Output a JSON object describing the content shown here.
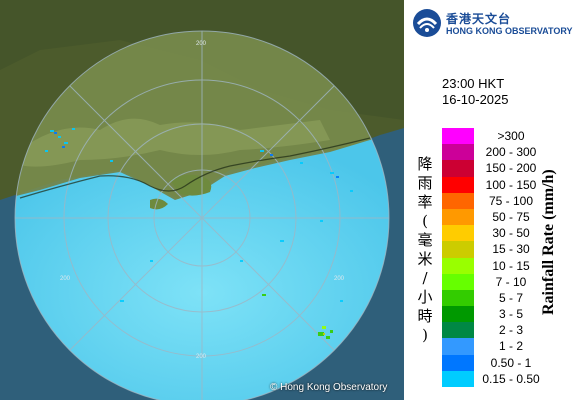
{
  "header": {
    "logo_cn": "香港天文台",
    "logo_en": "HONG KONG OBSERVATORY"
  },
  "time": {
    "clock": "23:00 HKT",
    "date": "16-10-2025"
  },
  "legend": {
    "title_cn": "降雨率(毫米/小時)",
    "title_en": "Rainfall Rate (mm/h)",
    "items": [
      {
        "label": ">300",
        "color": "#ff00ff"
      },
      {
        "label": "200 - 300",
        "color": "#cc0099"
      },
      {
        "label": "150 - 200",
        "color": "#cc0033"
      },
      {
        "label": "100 - 150",
        "color": "#ff0000"
      },
      {
        "label": "75 - 100",
        "color": "#ff6600"
      },
      {
        "label": "50 - 75",
        "color": "#ff9900"
      },
      {
        "label": "30 - 50",
        "color": "#ffcc00"
      },
      {
        "label": "15 - 30",
        "color": "#cccc00"
      },
      {
        "label": "10 - 15",
        "color": "#99ff00"
      },
      {
        "label": "7 - 10",
        "color": "#66ff00"
      },
      {
        "label": "5 - 7",
        "color": "#33cc00"
      },
      {
        "label": "3 - 5",
        "color": "#009900"
      },
      {
        "label": "2 - 3",
        "color": "#008844"
      },
      {
        "label": "1 - 2",
        "color": "#3399ff"
      },
      {
        "label": "0.50 - 1",
        "color": "#0077ff"
      },
      {
        "label": "0.15 - 0.50",
        "color": "#00ccff"
      }
    ]
  },
  "map": {
    "range_labels": [
      "200",
      "200",
      "200",
      "200"
    ],
    "copyright": "© Hong Kong Observatory",
    "sea_color": "#5fd3f0",
    "land_color": "#5a6a36"
  }
}
